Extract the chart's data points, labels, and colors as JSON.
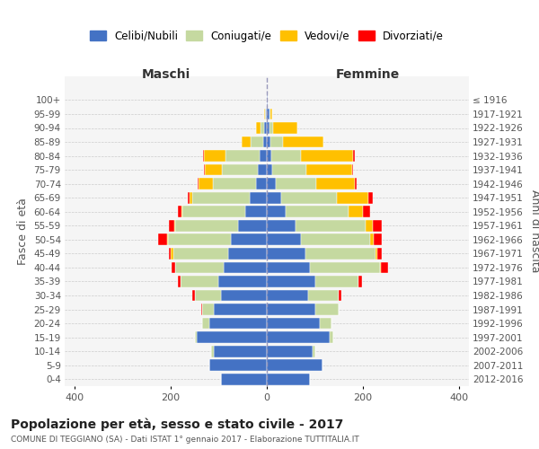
{
  "age_groups": [
    "0-4",
    "5-9",
    "10-14",
    "15-19",
    "20-24",
    "25-29",
    "30-34",
    "35-39",
    "40-44",
    "45-49",
    "50-54",
    "55-59",
    "60-64",
    "65-69",
    "70-74",
    "75-79",
    "80-84",
    "85-89",
    "90-94",
    "95-99",
    "100+"
  ],
  "birth_years": [
    "2012-2016",
    "2007-2011",
    "2002-2006",
    "1997-2001",
    "1992-1996",
    "1987-1991",
    "1982-1986",
    "1977-1981",
    "1972-1976",
    "1967-1971",
    "1962-1966",
    "1957-1961",
    "1952-1956",
    "1947-1951",
    "1942-1946",
    "1937-1941",
    "1932-1936",
    "1927-1931",
    "1922-1926",
    "1917-1921",
    "≤ 1916"
  ],
  "maschi": {
    "celibi": [
      95,
      120,
      110,
      145,
      120,
      110,
      95,
      100,
      90,
      80,
      75,
      60,
      45,
      35,
      22,
      18,
      15,
      8,
      5,
      2,
      0
    ],
    "coniugati": [
      0,
      0,
      5,
      5,
      15,
      25,
      55,
      80,
      100,
      115,
      130,
      130,
      130,
      120,
      90,
      75,
      70,
      25,
      8,
      2,
      0
    ],
    "vedovi": [
      0,
      0,
      0,
      0,
      0,
      0,
      0,
      0,
      0,
      4,
      2,
      2,
      2,
      5,
      30,
      35,
      45,
      20,
      10,
      1,
      0
    ],
    "divorziati": [
      0,
      0,
      0,
      0,
      0,
      2,
      4,
      5,
      8,
      4,
      18,
      12,
      8,
      5,
      2,
      2,
      2,
      0,
      0,
      0,
      0
    ]
  },
  "femmine": {
    "celibi": [
      90,
      115,
      95,
      130,
      110,
      100,
      85,
      100,
      90,
      80,
      70,
      60,
      40,
      30,
      18,
      12,
      10,
      8,
      5,
      5,
      1
    ],
    "coniugati": [
      0,
      0,
      5,
      8,
      25,
      50,
      65,
      90,
      145,
      145,
      145,
      145,
      130,
      115,
      85,
      70,
      60,
      25,
      8,
      2,
      0
    ],
    "vedovi": [
      0,
      0,
      0,
      0,
      0,
      0,
      0,
      0,
      2,
      5,
      8,
      15,
      30,
      65,
      80,
      95,
      110,
      85,
      50,
      5,
      1
    ],
    "divorziati": [
      0,
      0,
      0,
      0,
      0,
      0,
      4,
      8,
      15,
      8,
      15,
      18,
      15,
      10,
      4,
      2,
      2,
      0,
      0,
      0,
      0
    ]
  },
  "colors": {
    "celibi": "#4472C4",
    "coniugati": "#C5D9A0",
    "vedovi": "#FFC000",
    "divorziati": "#FF0000"
  },
  "legend_labels": [
    "Celibi/Nubili",
    "Coniugati/e",
    "Vedovi/e",
    "Divorziati/e"
  ],
  "title": "Popolazione per età, sesso e stato civile - 2017",
  "subtitle": "COMUNE DI TEGGIANO (SA) - Dati ISTAT 1° gennaio 2017 - Elaborazione TUTTITALIA.IT",
  "xlabel_left": "Maschi",
  "xlabel_right": "Femmine",
  "ylabel_left": "Fasce di età",
  "ylabel_right": "Anni di nascita",
  "xlim": 420,
  "plot_bg_color": "#f5f5f5",
  "bg_color": "#ffffff",
  "grid_color": "#cccccc"
}
